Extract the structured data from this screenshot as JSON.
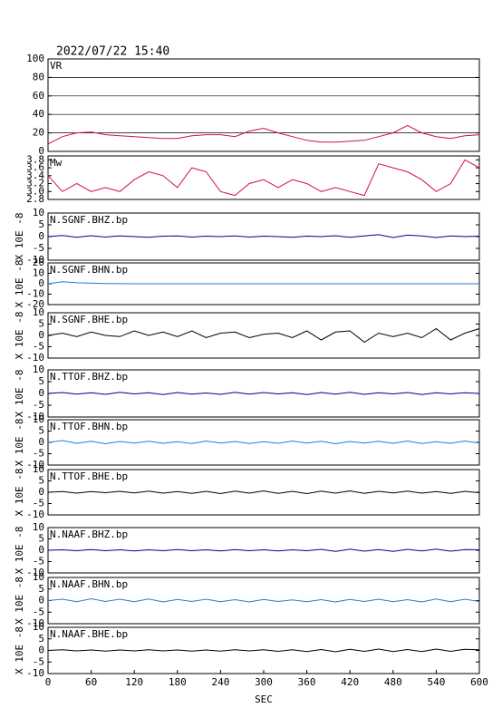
{
  "chart_data": [
    {
      "type": "line",
      "title": "2022/07/22 15:40",
      "label": "VR",
      "color": "#d0103a",
      "ylim": [
        0,
        100
      ],
      "yticks": [
        0,
        20,
        40,
        60,
        80,
        100
      ],
      "grid": true,
      "x": [
        0,
        20,
        40,
        60,
        80,
        100,
        120,
        140,
        160,
        180,
        200,
        220,
        240,
        260,
        280,
        300,
        320,
        340,
        360,
        380,
        400,
        420,
        440,
        460,
        480,
        500,
        520,
        540,
        560,
        580,
        600
      ],
      "values": [
        8,
        16,
        20,
        21,
        18,
        17,
        16,
        15,
        14,
        14,
        17,
        18,
        18,
        16,
        22,
        25,
        20,
        16,
        12,
        10,
        10,
        11,
        12,
        16,
        20,
        28,
        20,
        16,
        14,
        17,
        18
      ]
    },
    {
      "type": "line",
      "label": "Mw",
      "color": "#d0103a",
      "ylim": [
        2.8,
        3.9
      ],
      "yticks": [
        2.8,
        {
          "value": 3,
          "label": "3.0"
        },
        3.2,
        3.4,
        3.6,
        3.8
      ],
      "grid": false,
      "x": [
        0,
        20,
        40,
        60,
        80,
        100,
        120,
        140,
        160,
        180,
        200,
        220,
        240,
        260,
        280,
        300,
        320,
        340,
        360,
        380,
        400,
        420,
        440,
        460,
        480,
        500,
        520,
        540,
        560,
        580,
        600
      ],
      "values": [
        3.4,
        3.0,
        3.2,
        3.0,
        3.1,
        3.0,
        3.3,
        3.5,
        3.4,
        3.1,
        3.6,
        3.5,
        3.0,
        2.9,
        3.2,
        3.3,
        3.1,
        3.3,
        3.2,
        3.0,
        3.1,
        3.0,
        2.9,
        3.7,
        3.6,
        3.5,
        3.3,
        3.0,
        3.2,
        3.8,
        3.6
      ]
    },
    {
      "type": "line",
      "label": "N.SGNF.BHZ.bp",
      "y_label": "X 10E -8",
      "color": "#00008b",
      "ylim": [
        -10,
        10
      ],
      "yticks": [
        -10,
        -5,
        0,
        5,
        10
      ],
      "grid": false,
      "x": [
        0,
        20,
        40,
        60,
        80,
        100,
        120,
        140,
        160,
        180,
        200,
        220,
        240,
        260,
        280,
        300,
        320,
        340,
        360,
        380,
        400,
        420,
        440,
        460,
        480,
        500,
        520,
        540,
        560,
        580,
        600
      ],
      "values": [
        0,
        0.5,
        -0.3,
        0.4,
        -0.2,
        0.3,
        0,
        -0.3,
        0.2,
        0.3,
        -0.2,
        0.2,
        0,
        0.3,
        -0.2,
        0.2,
        0,
        -0.3,
        0.2,
        0,
        0.4,
        -0.3,
        0.3,
        0.8,
        -0.4,
        0.6,
        0.3,
        -0.4,
        0.3,
        0,
        0.2
      ]
    },
    {
      "type": "line",
      "label": "N.SGNF.BHN.bp",
      "y_label": "X 10E -8",
      "color": "#1e7fd0",
      "ylim": [
        -20,
        20
      ],
      "yticks": [
        -20,
        -10,
        0,
        10,
        20
      ],
      "grid": false,
      "x": [
        0,
        20,
        40,
        60,
        80,
        100,
        120,
        140,
        160,
        180,
        200,
        220,
        240,
        260,
        280,
        300,
        320,
        340,
        360,
        380,
        400,
        420,
        440,
        460,
        480,
        500,
        520,
        540,
        560,
        580,
        600
      ],
      "values": [
        0,
        2,
        1,
        0.5,
        0.3,
        0.1,
        0,
        0,
        0,
        0,
        0,
        0,
        0,
        0,
        0,
        0,
        0,
        0,
        0,
        0,
        0,
        0,
        0,
        0,
        0,
        0,
        0,
        0,
        0,
        0,
        0
      ]
    },
    {
      "type": "line",
      "label": "N.SGNF.BHE.bp",
      "y_label": "X 10E -8",
      "color": "#000000",
      "ylim": [
        -10,
        10
      ],
      "yticks": [
        -10,
        -5,
        0,
        5,
        10
      ],
      "grid": false,
      "x": [
        0,
        20,
        40,
        60,
        80,
        100,
        120,
        140,
        160,
        180,
        200,
        220,
        240,
        260,
        280,
        300,
        320,
        340,
        360,
        380,
        400,
        420,
        440,
        460,
        480,
        500,
        520,
        540,
        560,
        580,
        600
      ],
      "values": [
        0,
        1,
        -0.5,
        1.5,
        0,
        -0.5,
        2,
        0,
        1.5,
        -0.5,
        2,
        -1,
        1,
        1.5,
        -1,
        0.5,
        1,
        -1,
        2,
        -2,
        1.5,
        2,
        -3,
        1,
        -0.5,
        1,
        -1,
        3,
        -2,
        1,
        3
      ]
    },
    {
      "type": "line",
      "label": "N.TTOF.BHZ.bp",
      "y_label": "X 10E -8",
      "color": "#00008b",
      "ylim": [
        -10,
        10
      ],
      "yticks": [
        -10,
        -5,
        0,
        5,
        10
      ],
      "grid": false,
      "x": [
        0,
        20,
        40,
        60,
        80,
        100,
        120,
        140,
        160,
        180,
        200,
        220,
        240,
        260,
        280,
        300,
        320,
        340,
        360,
        380,
        400,
        420,
        440,
        460,
        480,
        500,
        520,
        540,
        560,
        580,
        600
      ],
      "values": [
        0,
        0.4,
        -0.3,
        0.3,
        -0.4,
        0.5,
        -0.2,
        0.3,
        -0.5,
        0.4,
        -0.3,
        0.2,
        -0.4,
        0.5,
        -0.3,
        0.4,
        -0.2,
        0.3,
        -0.5,
        0.4,
        -0.3,
        0.5,
        -0.4,
        0.3,
        -0.2,
        0.4,
        -0.5,
        0.3,
        -0.2,
        0.3,
        0
      ]
    },
    {
      "type": "line",
      "label": "N.TTOF.BHN.bp",
      "y_label": "X 10E -8",
      "color": "#1e7fd0",
      "ylim": [
        -10,
        10
      ],
      "yticks": [
        -10,
        -5,
        0,
        5,
        10
      ],
      "grid": false,
      "x": [
        0,
        20,
        40,
        60,
        80,
        100,
        120,
        140,
        160,
        180,
        200,
        220,
        240,
        260,
        280,
        300,
        320,
        340,
        360,
        380,
        400,
        420,
        440,
        460,
        480,
        500,
        520,
        540,
        560,
        580,
        600
      ],
      "values": [
        0,
        0.8,
        -0.4,
        0.5,
        -0.6,
        0.4,
        -0.3,
        0.5,
        -0.4,
        0.3,
        -0.5,
        0.6,
        -0.3,
        0.4,
        -0.5,
        0.3,
        -0.4,
        0.6,
        -0.3,
        0.5,
        -0.6,
        0.4,
        -0.3,
        0.5,
        -0.4,
        0.6,
        -0.5,
        0.3,
        -0.4,
        0.6,
        -0.3
      ]
    },
    {
      "type": "line",
      "label": "N.TTOF.BHE.bp",
      "y_label": "X 10E -8",
      "color": "#000000",
      "ylim": [
        -10,
        10
      ],
      "yticks": [
        -10,
        -5,
        0,
        5,
        10
      ],
      "grid": false,
      "x": [
        0,
        20,
        40,
        60,
        80,
        100,
        120,
        140,
        160,
        180,
        200,
        220,
        240,
        260,
        280,
        300,
        320,
        340,
        360,
        380,
        400,
        420,
        440,
        460,
        480,
        500,
        520,
        540,
        560,
        580,
        600
      ],
      "values": [
        0,
        0.3,
        -0.4,
        0.3,
        -0.2,
        0.4,
        -0.3,
        0.5,
        -0.4,
        0.3,
        -0.5,
        0.4,
        -0.6,
        0.5,
        -0.4,
        0.6,
        -0.5,
        0.4,
        -0.6,
        0.5,
        -0.4,
        0.6,
        -0.5,
        0.4,
        -0.3,
        0.5,
        -0.4,
        0.3,
        -0.5,
        0.4,
        -0.2
      ]
    },
    {
      "type": "line",
      "label": "N.NAAF.BHZ.bp",
      "y_label": "X 10E -8",
      "color": "#00008b",
      "ylim": [
        -10,
        10
      ],
      "yticks": [
        -10,
        -5,
        0,
        5,
        10
      ],
      "grid": false,
      "x": [
        0,
        20,
        40,
        60,
        80,
        100,
        120,
        140,
        160,
        180,
        200,
        220,
        240,
        260,
        280,
        300,
        320,
        340,
        360,
        380,
        400,
        420,
        440,
        460,
        480,
        500,
        520,
        540,
        560,
        580,
        600
      ],
      "values": [
        0,
        0.2,
        -0.2,
        0.3,
        -0.2,
        0.2,
        -0.3,
        0.2,
        -0.2,
        0.3,
        -0.2,
        0.2,
        -0.3,
        0.3,
        -0.2,
        0.2,
        -0.3,
        0.2,
        -0.2,
        0.4,
        -0.5,
        0.5,
        -0.4,
        0.3,
        -0.5,
        0.4,
        -0.3,
        0.5,
        -0.4,
        0.3,
        0.2
      ]
    },
    {
      "type": "line",
      "label": "N.NAAF.BHN.bp",
      "y_label": "X 10E -8",
      "color": "#1e7fd0",
      "ylim": [
        -10,
        10
      ],
      "yticks": [
        -10,
        -5,
        0,
        5,
        10
      ],
      "grid": false,
      "x": [
        0,
        20,
        40,
        60,
        80,
        100,
        120,
        140,
        160,
        180,
        200,
        220,
        240,
        260,
        280,
        300,
        320,
        340,
        360,
        380,
        400,
        420,
        440,
        460,
        480,
        500,
        520,
        540,
        560,
        580,
        600
      ],
      "values": [
        0,
        0.6,
        -0.5,
        0.8,
        -0.4,
        0.6,
        -0.5,
        0.7,
        -0.6,
        0.5,
        -0.4,
        0.6,
        -0.5,
        0.4,
        -0.6,
        0.5,
        -0.4,
        0.3,
        -0.5,
        0.4,
        -0.6,
        0.5,
        -0.4,
        0.6,
        -0.5,
        0.4,
        -0.6,
        0.7,
        -0.5,
        0.6,
        -0.4
      ]
    },
    {
      "type": "line",
      "label": "N.NAAF.BHE.bp",
      "y_label": "X 10E -8",
      "color": "#000000",
      "ylim": [
        -10,
        10
      ],
      "yticks": [
        -10,
        -5,
        0,
        5,
        10
      ],
      "grid": false,
      "x": [
        0,
        20,
        40,
        60,
        80,
        100,
        120,
        140,
        160,
        180,
        200,
        220,
        240,
        260,
        280,
        300,
        320,
        340,
        360,
        380,
        400,
        420,
        440,
        460,
        480,
        500,
        520,
        540,
        560,
        580,
        600
      ],
      "values": [
        0,
        0.3,
        -0.2,
        0.2,
        -0.3,
        0.2,
        -0.2,
        0.3,
        -0.2,
        0.2,
        -0.3,
        0.2,
        -0.3,
        0.3,
        -0.2,
        0.3,
        -0.4,
        0.3,
        -0.5,
        0.4,
        -0.6,
        0.5,
        -0.4,
        0.6,
        -0.5,
        0.4,
        -0.5,
        0.6,
        -0.4,
        0.5,
        0.3
      ],
      "x_label": "SEC",
      "xlim": [
        0,
        600
      ],
      "xticks": [
        0,
        60,
        120,
        180,
        240,
        300,
        360,
        420,
        480,
        540,
        600
      ]
    }
  ]
}
